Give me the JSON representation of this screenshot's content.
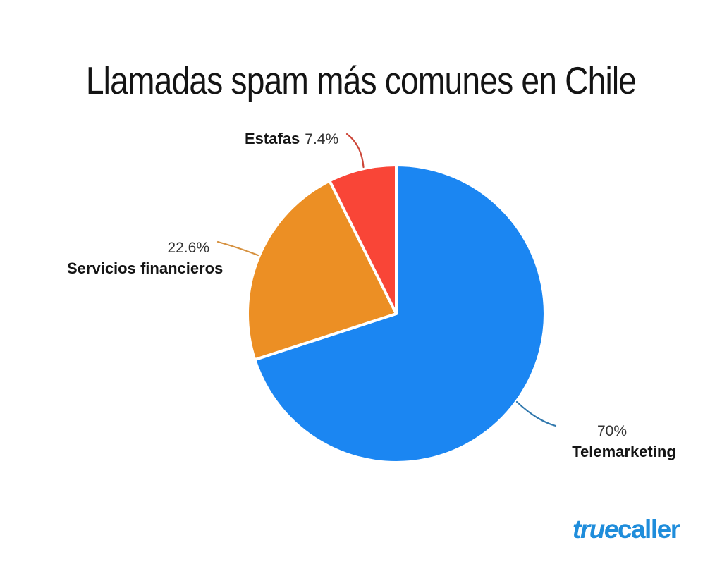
{
  "title": "Llamadas spam más comunes en Chile",
  "chart_data": {
    "type": "pie",
    "title": "Llamadas spam más comunes en Chile",
    "unit": "%",
    "start_angle_deg": 0,
    "direction": "clockwise",
    "legend": "none",
    "labels_position": "outside-with-leader-lines",
    "background_color": "#ffffff",
    "slices": [
      {
        "label": "Telemarketing",
        "value": 70,
        "display_value": "70%",
        "color": "#1b86f2",
        "leader_color": "#3178ad"
      },
      {
        "label": "Servicios financieros",
        "value": 22.6,
        "display_value": "22.6%",
        "color": "#ec8f24",
        "leader_color": "#d6913f"
      },
      {
        "label": "Estafas",
        "value": 7.4,
        "display_value": "7.4%",
        "color": "#f94537",
        "leader_color": "#cc4638"
      }
    ]
  },
  "branding": {
    "logo_text_script": "true",
    "logo_text_regular": "caller",
    "logo_color": "#1f8ddb"
  }
}
